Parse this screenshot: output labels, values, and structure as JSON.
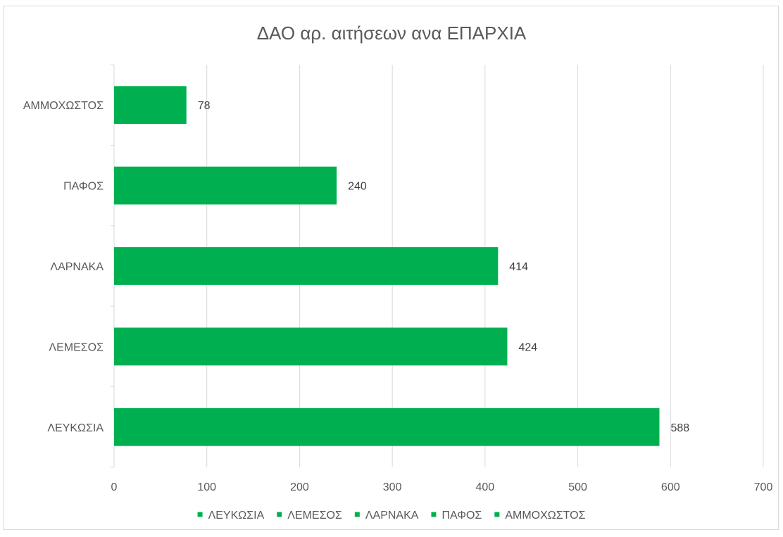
{
  "chart_data": {
    "type": "bar",
    "orientation": "horizontal",
    "title": "ΔΑΟ αρ. αιτήσεων ανα ΕΠΑΡΧΙΑ",
    "categories": [
      "ΛΕΥΚΩΣΙΑ",
      "ΛΕΜΕΣΟΣ",
      "ΛΑΡΝΑΚΑ",
      "ΠΑΦΟΣ",
      "ΑΜΜΟΧΩΣΤΟΣ"
    ],
    "values": [
      588,
      424,
      414,
      240,
      78
    ],
    "data_labels": [
      "588",
      "424",
      "414",
      "240",
      "78"
    ],
    "xlim": [
      0,
      700
    ],
    "x_ticks": [
      0,
      100,
      200,
      300,
      400,
      500,
      600,
      700
    ],
    "x_tick_labels": [
      "0",
      "100",
      "200",
      "300",
      "400",
      "500",
      "600",
      "700"
    ],
    "grid": true,
    "bar_color": "#00b050",
    "legend": {
      "position": "bottom",
      "entries": [
        "ΛΕΥΚΩΣΙΑ",
        "ΛΕΜΕΣΟΣ",
        "ΛΑΡΝΑΚΑ",
        "ΠΑΦΟΣ",
        "ΑΜΜΟΧΩΣΤΟΣ"
      ]
    }
  }
}
